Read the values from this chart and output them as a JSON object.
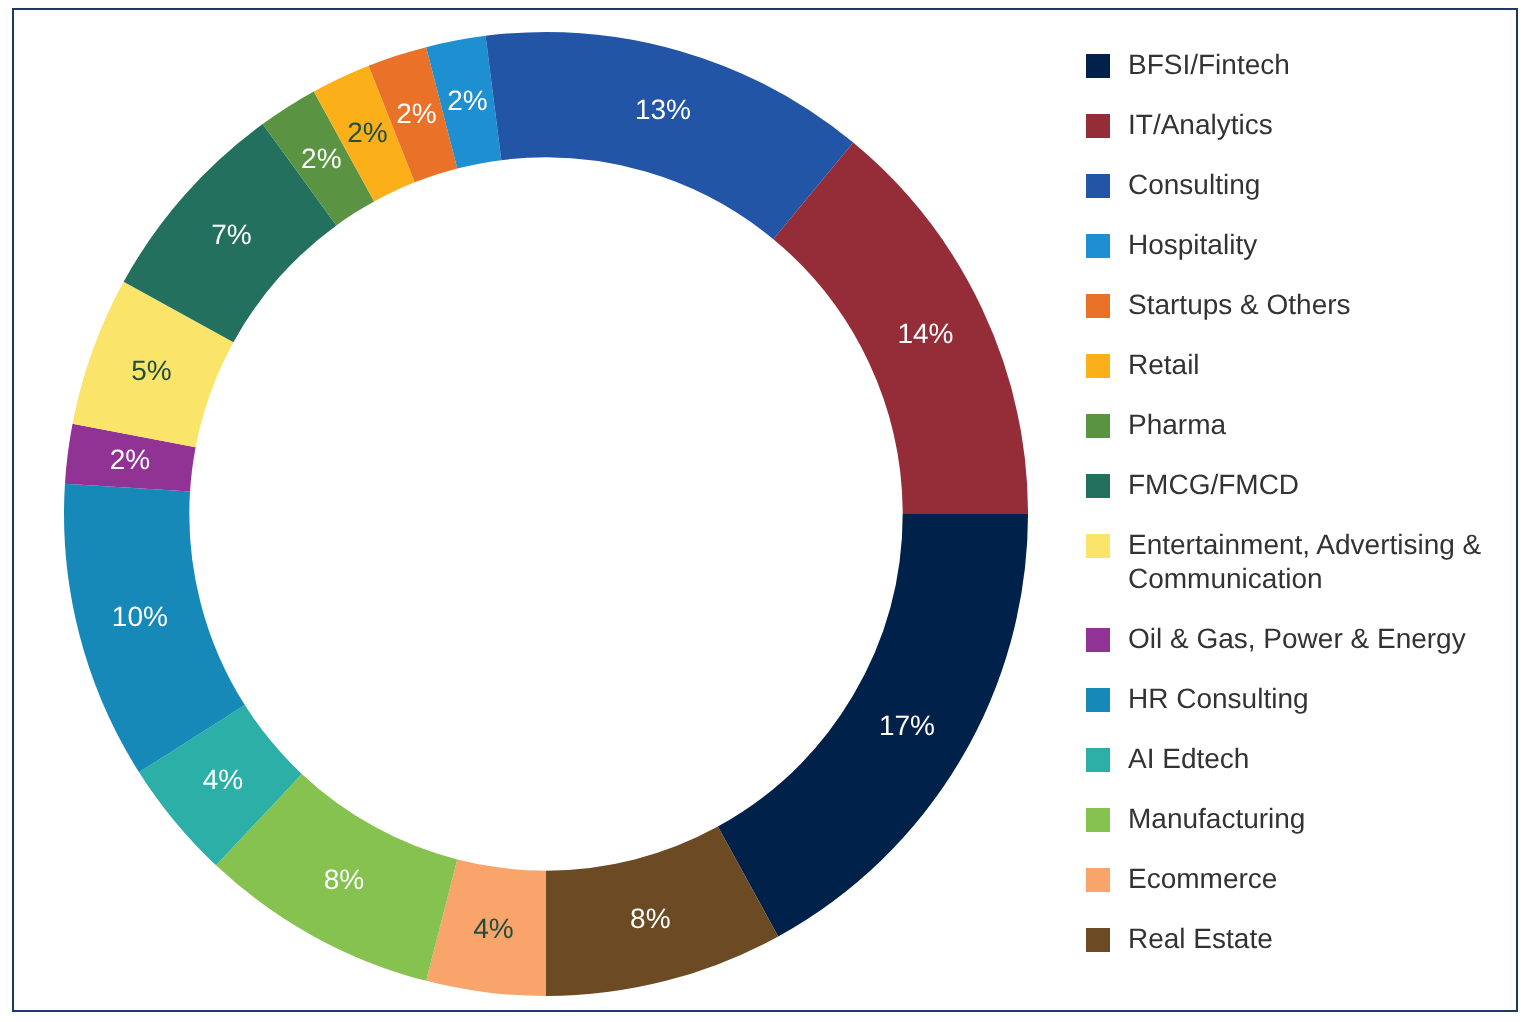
{
  "chart_data": {
    "type": "donut",
    "categories": [
      "BFSI/Fintech",
      "IT/Analytics",
      "Consulting",
      "Hospitality",
      "Startups & Others",
      "Retail",
      "Pharma",
      "FMCG/FMCD",
      "Entertainment, Advertising & Communication",
      "Oil & Gas, Power & Energy",
      "HR Consulting",
      "AI Edtech",
      "Manufacturing",
      "Ecommerce",
      "Real Estate"
    ],
    "values": [
      17,
      14,
      13,
      2,
      2,
      2,
      2,
      7,
      5,
      2,
      10,
      4,
      8,
      4,
      8
    ],
    "colors": [
      "#00214a",
      "#952d38",
      "#2255a6",
      "#1e8fd0",
      "#ea7228",
      "#fbb01a",
      "#5a9442",
      "#24705f",
      "#fbe46a",
      "#903394",
      "#1789b8",
      "#2bafa6",
      "#86c250",
      "#f8a46b",
      "#6b4a24"
    ],
    "value_labels": [
      "17%",
      "14%",
      "13%",
      "2%",
      "2%",
      "2%",
      "2%",
      "7%",
      "5%",
      "2%",
      "10%",
      "4%",
      "8%",
      "4%",
      "8%"
    ],
    "legend": "right"
  }
}
